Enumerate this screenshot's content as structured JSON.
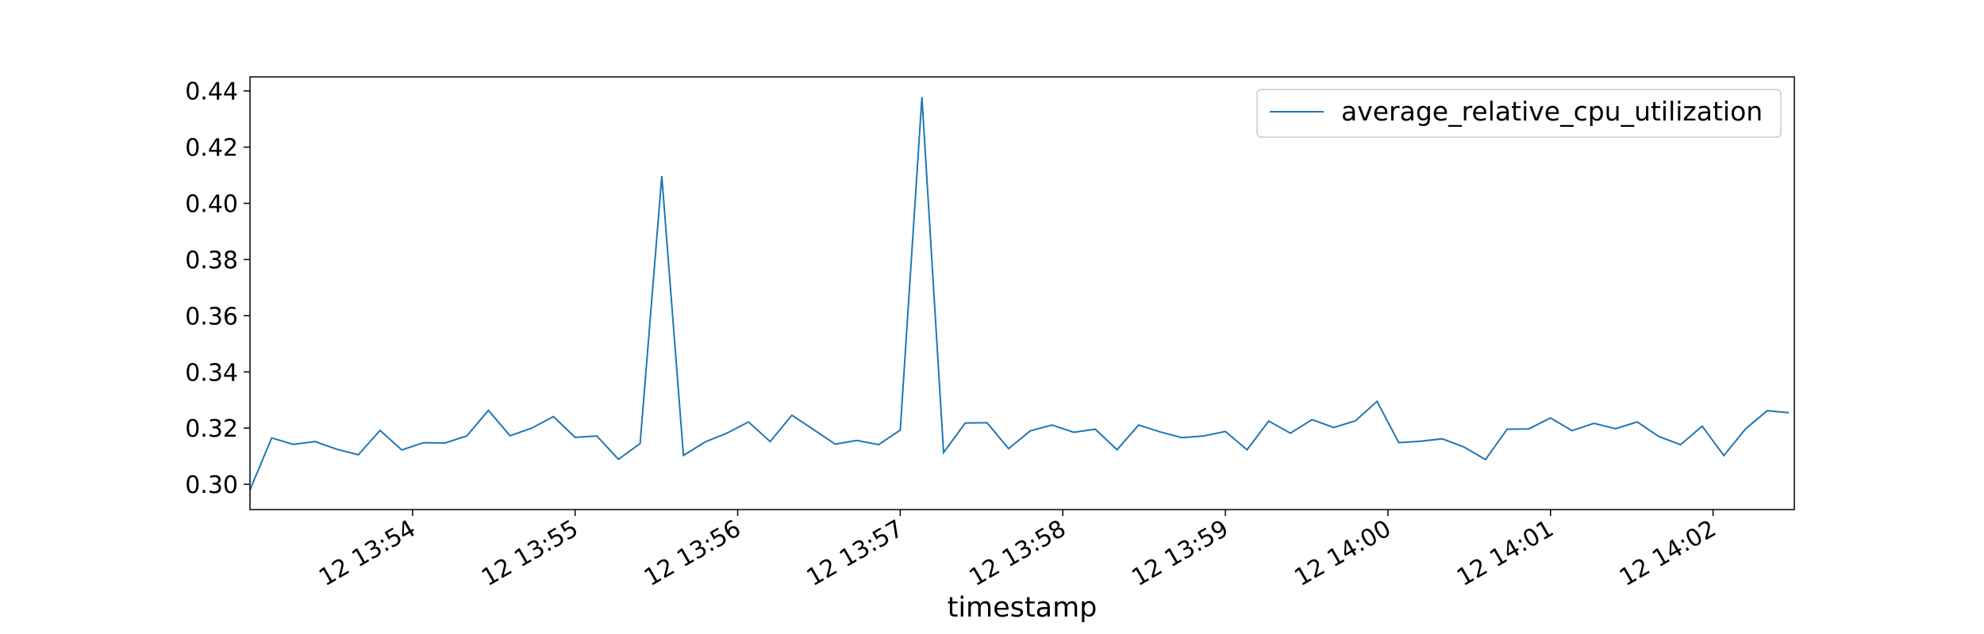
{
  "chart_data": {
    "type": "line",
    "title": "",
    "xlabel": "timestamp",
    "ylabel": "",
    "ylim": [
      0.291,
      0.445
    ],
    "xlim": [
      "12 13:53:00",
      "12 14:02:30"
    ],
    "grid": false,
    "legend_position": "top-right",
    "yticks": [
      0.3,
      0.32,
      0.34,
      0.36,
      0.38,
      0.4,
      0.42,
      0.44
    ],
    "ytick_labels": [
      "0.30",
      "0.32",
      "0.34",
      "0.36",
      "0.38",
      "0.40",
      "0.42",
      "0.44"
    ],
    "xticks": [
      "12 13:54:00",
      "12 13:55:00",
      "12 13:56:00",
      "12 13:57:00",
      "12 13:58:00",
      "12 13:59:00",
      "12 14:00:00",
      "12 14:01:00",
      "12 14:02:00"
    ],
    "xtick_labels": [
      "12 13:54",
      "12 13:55",
      "12 13:56",
      "12 13:57",
      "12 13:58",
      "12 13:59",
      "12 14:00",
      "12 14:01",
      "12 14:02"
    ],
    "series": [
      {
        "name": "average_relative_cpu_utilization",
        "color": "#1f77b4",
        "x": [
          "12 13:53:00",
          "12 13:53:08",
          "12 13:53:16",
          "12 13:53:24",
          "12 13:53:32",
          "12 13:53:40",
          "12 13:53:48",
          "12 13:53:56",
          "12 13:54:04",
          "12 13:54:12",
          "12 13:54:20",
          "12 13:54:28",
          "12 13:54:36",
          "12 13:54:44",
          "12 13:54:52",
          "12 13:55:00",
          "12 13:55:08",
          "12 13:55:16",
          "12 13:55:24",
          "12 13:55:32",
          "12 13:55:40",
          "12 13:55:48",
          "12 13:55:56",
          "12 13:56:04",
          "12 13:56:12",
          "12 13:56:20",
          "12 13:56:28",
          "12 13:56:36",
          "12 13:56:44",
          "12 13:56:52",
          "12 13:57:00",
          "12 13:57:08",
          "12 13:57:16",
          "12 13:57:24",
          "12 13:57:32",
          "12 13:57:40",
          "12 13:57:48",
          "12 13:57:56",
          "12 13:58:04",
          "12 13:58:12",
          "12 13:58:20",
          "12 13:58:28",
          "12 13:58:36",
          "12 13:58:44",
          "12 13:58:52",
          "12 13:59:00",
          "12 13:59:08",
          "12 13:59:16",
          "12 13:59:24",
          "12 13:59:32",
          "12 13:59:40",
          "12 13:59:48",
          "12 13:59:56",
          "12 14:00:04",
          "12 14:00:12",
          "12 14:00:20",
          "12 14:00:28",
          "12 14:00:36",
          "12 14:00:44",
          "12 14:00:52",
          "12 14:01:00",
          "12 14:01:08",
          "12 14:01:16",
          "12 14:01:24",
          "12 14:01:32",
          "12 14:01:40",
          "12 14:01:48",
          "12 14:01:56",
          "12 14:02:04",
          "12 14:02:12",
          "12 14:02:20",
          "12 14:02:28"
        ],
        "values": [
          0.298,
          0.3165,
          0.3142,
          0.3152,
          0.3125,
          0.3105,
          0.3192,
          0.3122,
          0.3148,
          0.3147,
          0.3172,
          0.3263,
          0.3173,
          0.32,
          0.3241,
          0.3167,
          0.3172,
          0.3089,
          0.3145,
          0.4097,
          0.3103,
          0.3151,
          0.3182,
          0.3222,
          0.3152,
          0.3246,
          0.3195,
          0.3143,
          0.3156,
          0.3141,
          0.3193,
          0.4378,
          0.3113,
          0.3218,
          0.3219,
          0.3127,
          0.319,
          0.3211,
          0.3185,
          0.3196,
          0.3123,
          0.3211,
          0.3186,
          0.3166,
          0.3172,
          0.3188,
          0.3123,
          0.3225,
          0.3182,
          0.323,
          0.3202,
          0.3226,
          0.3295,
          0.3148,
          0.3153,
          0.3162,
          0.3133,
          0.3088,
          0.3196,
          0.3197,
          0.3236,
          0.3191,
          0.3217,
          0.3198,
          0.3222,
          0.317,
          0.3141,
          0.3207,
          0.3102,
          0.3197,
          0.3262,
          0.3255
        ]
      }
    ]
  }
}
